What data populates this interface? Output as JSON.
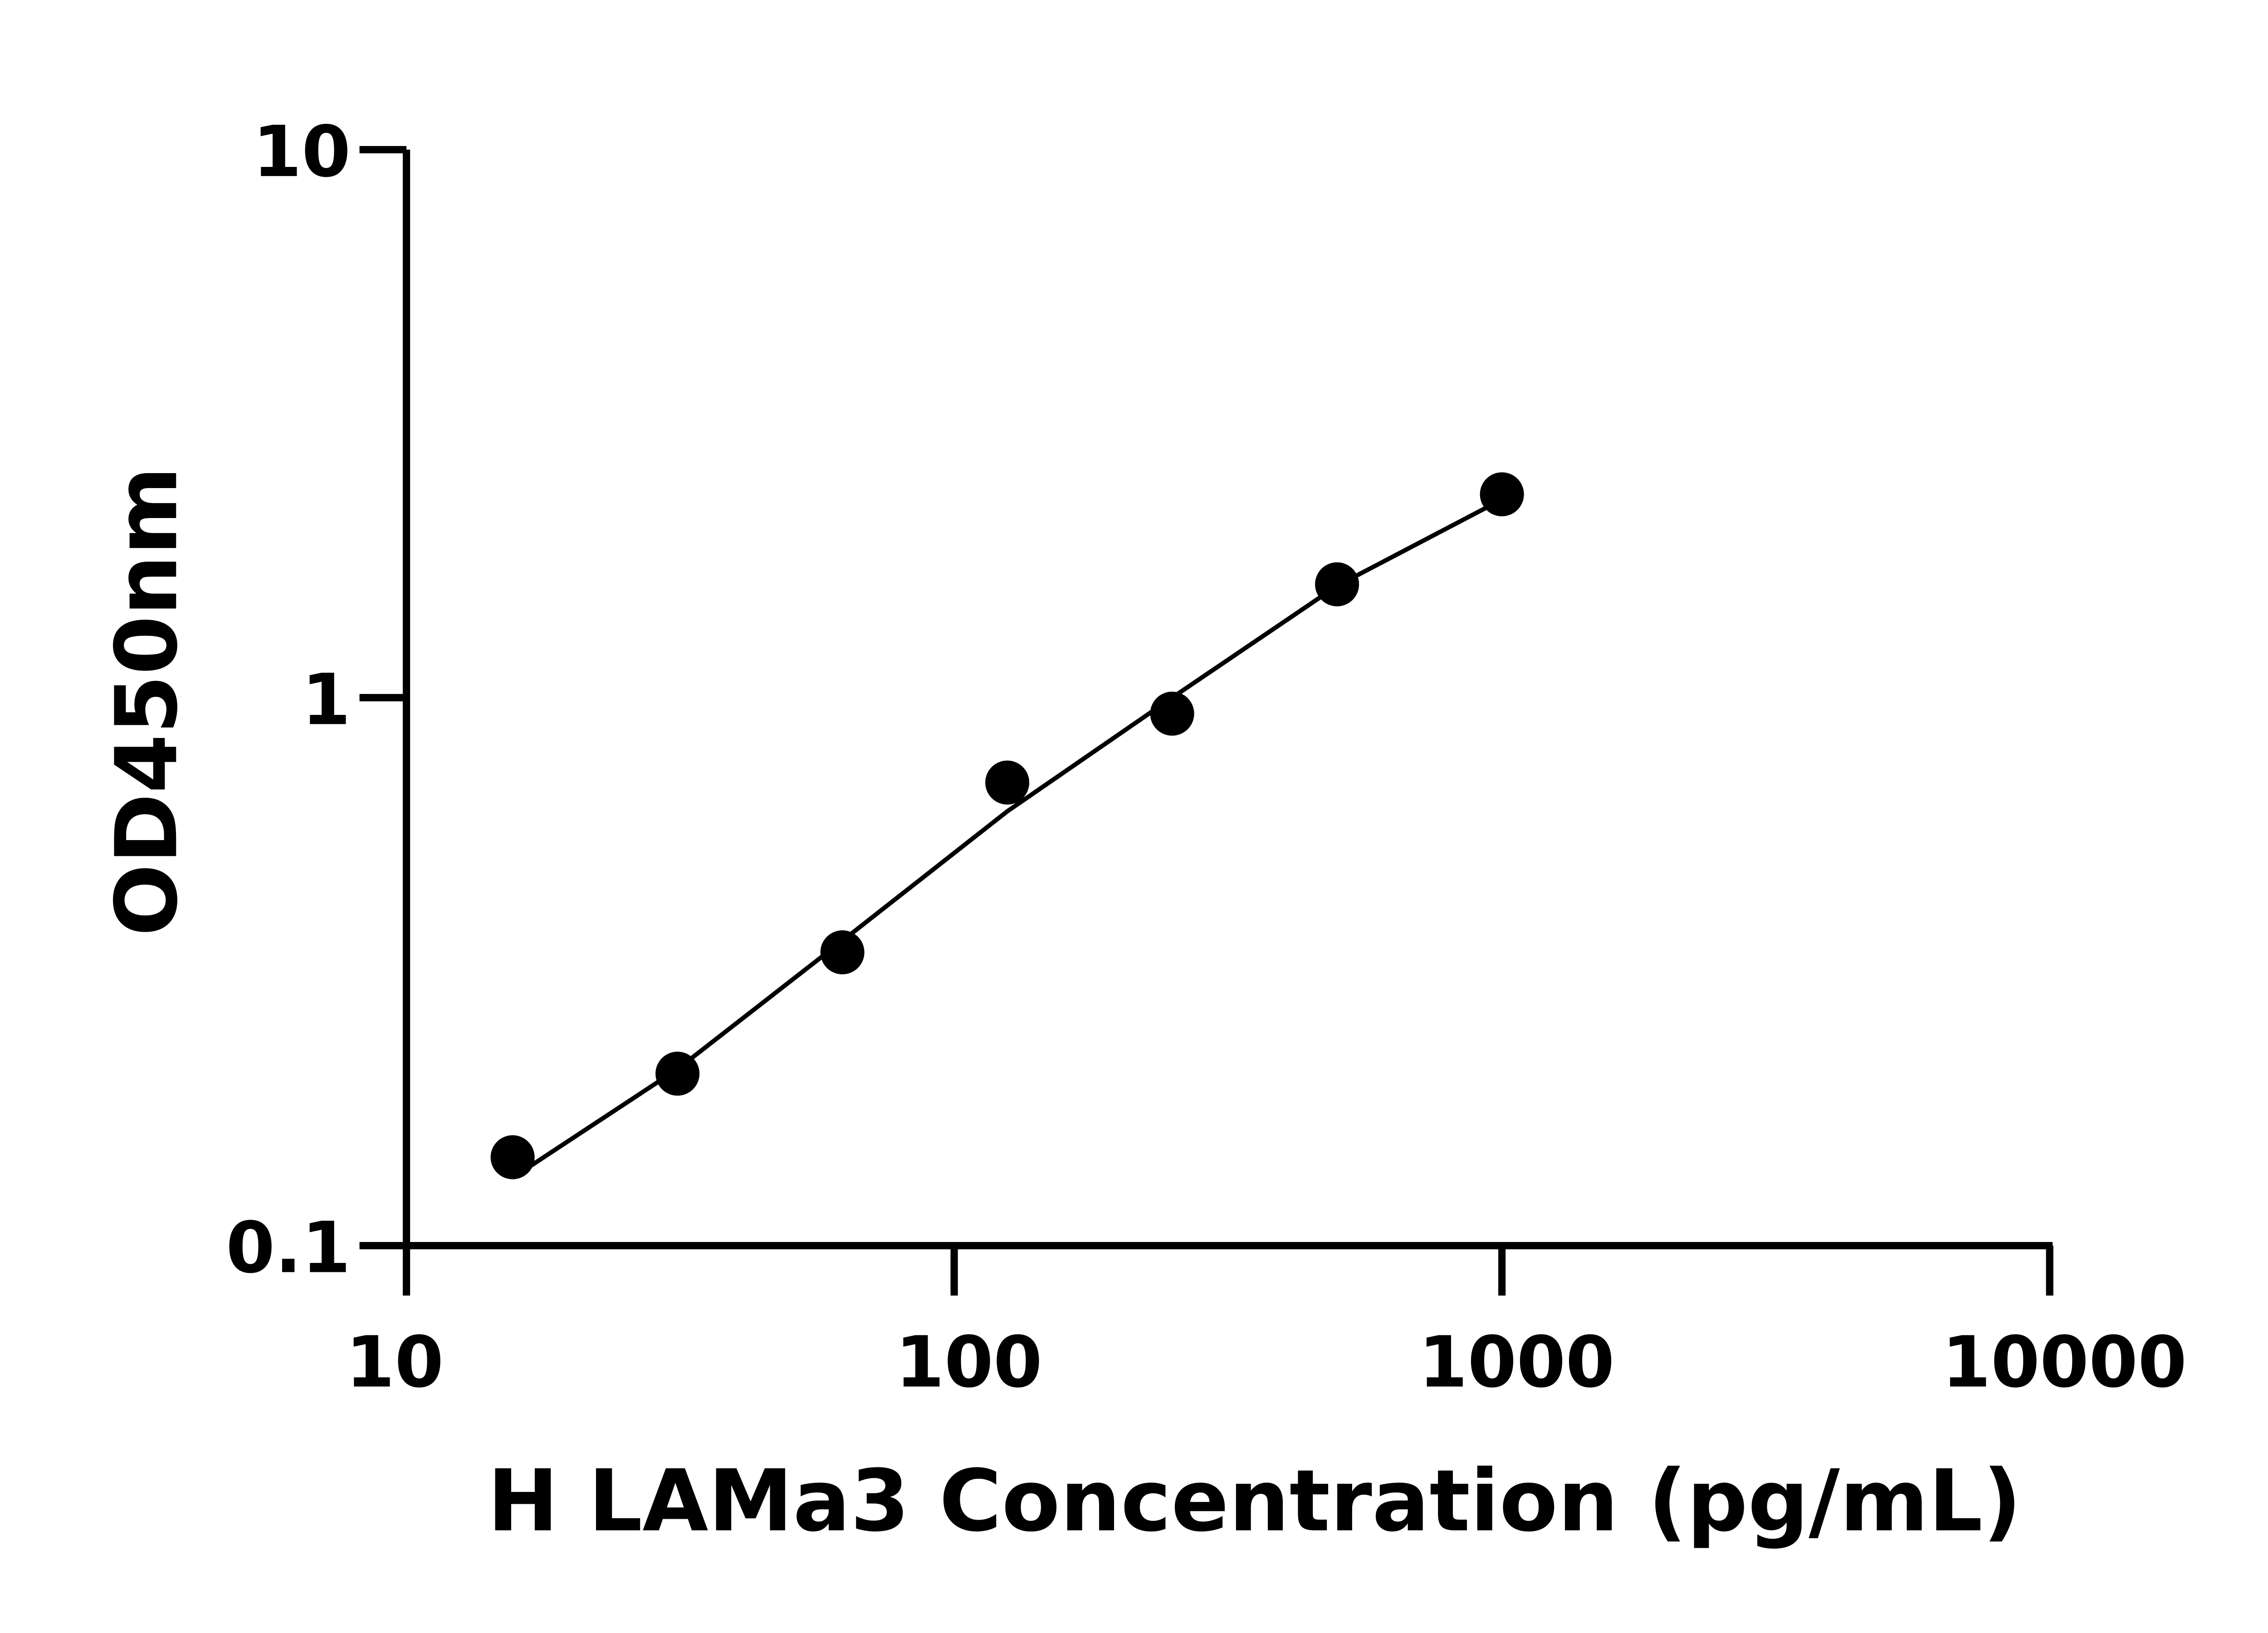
{
  "chart_data": {
    "type": "scatter",
    "title": "",
    "xlabel": "H LAMa3 Concentration (pg/mL)",
    "ylabel": "OD450nm",
    "xscale": "log",
    "yscale": "log",
    "xlim": [
      10,
      10000
    ],
    "ylim": [
      0.1,
      10
    ],
    "xticks": [
      10,
      100,
      1000,
      10000
    ],
    "xtick_labels": [
      "10",
      "100",
      "1000",
      "10000"
    ],
    "yticks": [
      0.1,
      1,
      10
    ],
    "ytick_labels": [
      "0.1",
      "1",
      "10"
    ],
    "grid": false,
    "legend": "none",
    "series": [
      {
        "points": [
          {
            "x": 15.625,
            "y": 0.145
          },
          {
            "x": 31.25,
            "y": 0.206
          },
          {
            "x": 62.5,
            "y": 0.343
          },
          {
            "x": 125,
            "y": 0.7
          },
          {
            "x": 250,
            "y": 0.935
          },
          {
            "x": 500,
            "y": 1.61
          },
          {
            "x": 1000,
            "y": 2.35
          }
        ],
        "color": "#000000"
      }
    ],
    "fit_curve": {
      "x": [
        15.625,
        31.25,
        62.5,
        125,
        250,
        500,
        1000
      ],
      "y": [
        0.133,
        0.21,
        0.36,
        0.62,
        1.0,
        1.6,
        2.3
      ],
      "color": "#000000"
    }
  }
}
